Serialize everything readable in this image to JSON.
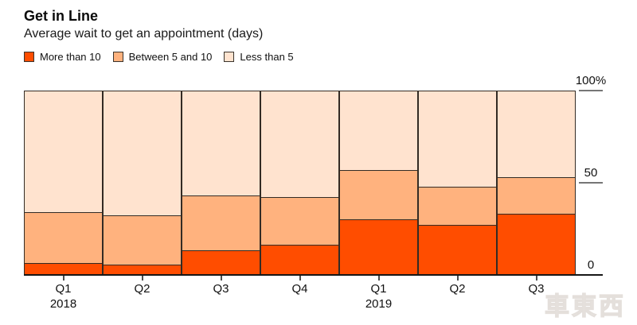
{
  "chart_data": {
    "type": "bar",
    "stacked": true,
    "percent": true,
    "title": "Get in Line",
    "subtitle": "Average wait to get an appointment (days)",
    "grid": false,
    "legend_position": "top",
    "categories": [
      {
        "quarter": "Q1",
        "year": "2018"
      },
      {
        "quarter": "Q2",
        "year": ""
      },
      {
        "quarter": "Q3",
        "year": ""
      },
      {
        "quarter": "Q4",
        "year": ""
      },
      {
        "quarter": "Q1",
        "year": "2019"
      },
      {
        "quarter": "Q2",
        "year": ""
      },
      {
        "quarter": "Q3",
        "year": ""
      }
    ],
    "series": [
      {
        "name": "More than 10",
        "color": "#ff4d00",
        "values": [
          6,
          5,
          13,
          16,
          30,
          27,
          33
        ]
      },
      {
        "name": "Between 5 and 10",
        "color": "#ffb27e",
        "values": [
          28,
          27,
          30,
          26,
          27,
          21,
          20
        ]
      },
      {
        "name": "Less than 5",
        "color": "#ffe3cf",
        "values": [
          66,
          68,
          57,
          58,
          43,
          52,
          47
        ]
      }
    ],
    "xlabel": "",
    "ylabel": "",
    "ylim": [
      0,
      100
    ],
    "yticks": [
      {
        "value": 100,
        "label": "100%",
        "dash": true
      },
      {
        "value": 50,
        "label": "50",
        "dash": true
      },
      {
        "value": 0,
        "label": "0",
        "dash": false
      }
    ]
  },
  "colors": {
    "segment_border": "#332b24",
    "axis_line": "#161616",
    "tick_dash": "#767676",
    "more_than_10": "#ff4d00",
    "between_5_and_10": "#ffb27e",
    "less_than_5": "#ffe3cf"
  },
  "watermark": "車東西"
}
